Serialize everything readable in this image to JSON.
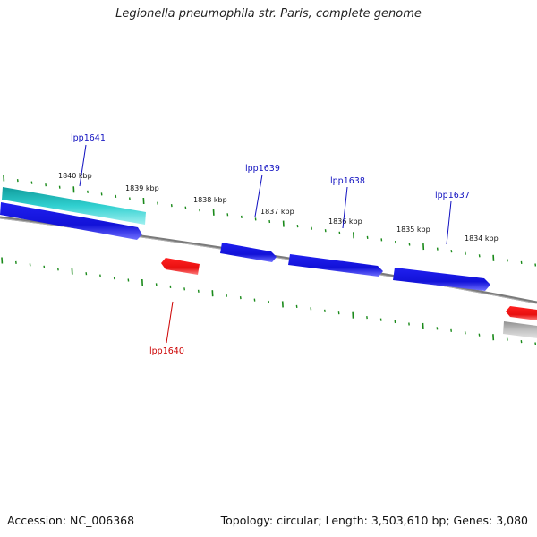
{
  "title": "Legionella pneumophila str. Paris, complete genome",
  "footer": {
    "accession": "Accession: NC_006368",
    "summary": "Topology: circular; Length: 3,503,610 bp; Genes: 3,080"
  },
  "colors": {
    "forward_gene": "#1010e0",
    "reverse_gene": "#ee1010",
    "highlight_gene": "#20c8c8",
    "other_gene": "#b8b8b8",
    "backbone": "#808080",
    "ticks": "#1a8a1a",
    "label_forward": "#1010c0",
    "label_reverse": "#cc0000"
  },
  "scale_labels": [
    "1840 kbp",
    "1839 kbp",
    "1838 kbp",
    "1837 kbp",
    "1836 kbp",
    "1835 kbp",
    "1834 kbp"
  ],
  "gene_labels": [
    {
      "name": "lpp1641",
      "strand": "forward"
    },
    {
      "name": "lpp1640",
      "strand": "reverse"
    },
    {
      "name": "lpp1639",
      "strand": "forward"
    },
    {
      "name": "lpp1638",
      "strand": "forward"
    },
    {
      "name": "lpp1637",
      "strand": "forward"
    }
  ]
}
